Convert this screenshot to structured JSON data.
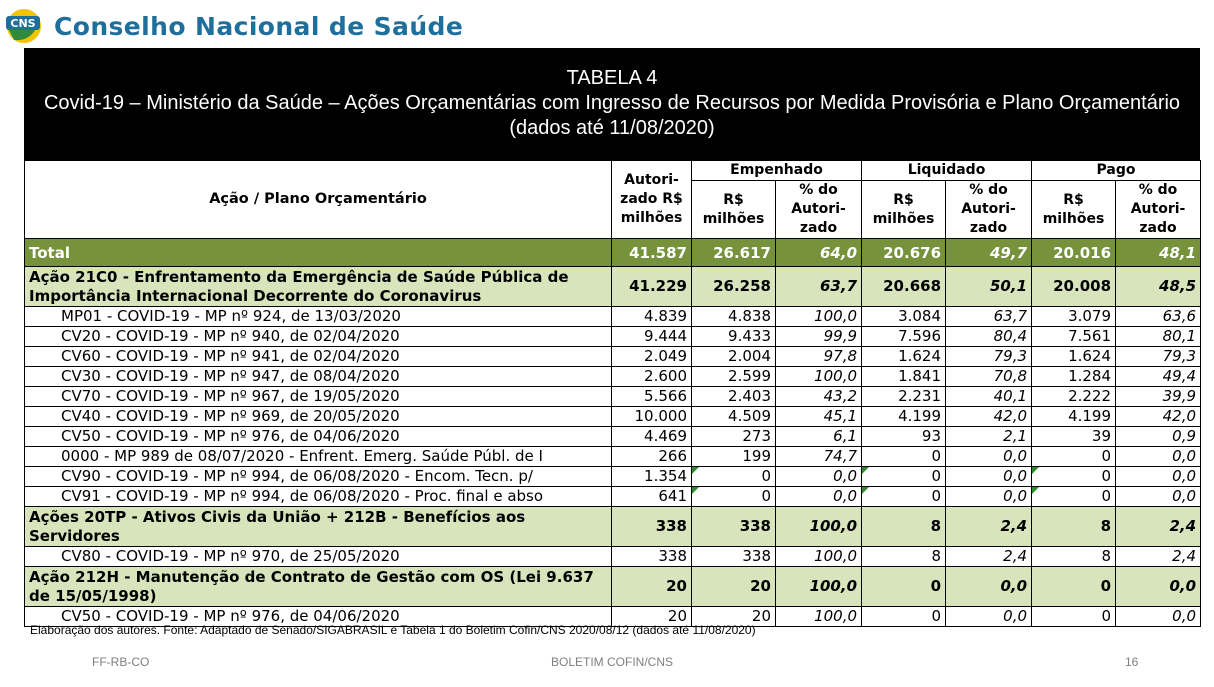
{
  "header": {
    "org_name": "Conselho Nacional de Saúde",
    "logo_text": "CNS"
  },
  "title": {
    "line1": "TABELA 4",
    "line2": "Covid-19 – Ministério da Saúde – Ações Orçamentárias com Ingresso de Recursos por Medida Provisória e Plano Orçamentário",
    "line3": "(dados até 11/08/2020)"
  },
  "table": {
    "headers": {
      "acao": "Ação / Plano Orçamentário",
      "autorizado": [
        "Autori-",
        "zado R$",
        "milhões"
      ],
      "empenhado": "Empenhado",
      "liquidado": "Liquidado",
      "pago": "Pago",
      "rs": [
        "R$",
        "milhões"
      ],
      "pct": [
        "% do",
        "Autori-",
        "zado"
      ]
    },
    "rows": [
      {
        "type": "total",
        "label": "Total",
        "aut": "41.587",
        "emp": "26.617",
        "emp_pct": "64,0",
        "liq": "20.676",
        "liq_pct": "49,7",
        "pago": "20.016",
        "pago_pct": "48,1"
      },
      {
        "type": "action",
        "label": "Ação 21C0 - Enfrentamento da Emergência de Saúde Pública de Importância Internacional Decorrente do Coronavirus",
        "aut": "41.229",
        "emp": "26.258",
        "emp_pct": "63,7",
        "liq": "20.668",
        "liq_pct": "50,1",
        "pago": "20.008",
        "pago_pct": "48,5"
      },
      {
        "type": "sub",
        "label": "MP01 - COVID-19 - MP nº 924, de 13/03/2020",
        "aut": "4.839",
        "emp": "4.838",
        "emp_pct": "100,0",
        "liq": "3.084",
        "liq_pct": "63,7",
        "pago": "3.079",
        "pago_pct": "63,6"
      },
      {
        "type": "sub",
        "label": "CV20 - COVID-19 - MP nº 940, de 02/04/2020",
        "aut": "9.444",
        "emp": "9.433",
        "emp_pct": "99,9",
        "liq": "7.596",
        "liq_pct": "80,4",
        "pago": "7.561",
        "pago_pct": "80,1"
      },
      {
        "type": "sub",
        "label": "CV60 - COVID-19 - MP nº 941, de 02/04/2020",
        "aut": "2.049",
        "emp": "2.004",
        "emp_pct": "97,8",
        "liq": "1.624",
        "liq_pct": "79,3",
        "pago": "1.624",
        "pago_pct": "79,3"
      },
      {
        "type": "sub",
        "label": "CV30 - COVID-19 - MP nº 947, de 08/04/2020",
        "aut": "2.600",
        "emp": "2.599",
        "emp_pct": "100,0",
        "liq": "1.841",
        "liq_pct": "70,8",
        "pago": "1.284",
        "pago_pct": "49,4"
      },
      {
        "type": "sub",
        "label": "CV70 - COVID-19 - MP nº 967, de 19/05/2020",
        "aut": "5.566",
        "emp": "2.403",
        "emp_pct": "43,2",
        "liq": "2.231",
        "liq_pct": "40,1",
        "pago": "2.222",
        "pago_pct": "39,9"
      },
      {
        "type": "sub",
        "label": "CV40 - COVID-19 - MP nº 969, de 20/05/2020",
        "aut": "10.000",
        "emp": "4.509",
        "emp_pct": "45,1",
        "liq": "4.199",
        "liq_pct": "42,0",
        "pago": "4.199",
        "pago_pct": "42,0"
      },
      {
        "type": "sub",
        "label": "CV50 - COVID-19 - MP nº 976, de 04/06/2020",
        "aut": "4.469",
        "emp": "273",
        "emp_pct": "6,1",
        "liq": "93",
        "liq_pct": "2,1",
        "pago": "39",
        "pago_pct": "0,9"
      },
      {
        "type": "sub",
        "label": "0000 - MP 989 de 08/07/2020 - Enfrent. Emerg. Saúde Públ. de I",
        "aut": "266",
        "emp": "199",
        "emp_pct": "74,7",
        "liq": "0",
        "liq_pct": "0,0",
        "pago": "0",
        "pago_pct": "0,0"
      },
      {
        "type": "sub",
        "marks": true,
        "label": "CV90 - COVID-19 - MP nº 994, de 06/08/2020 - Encom. Tecn. p/",
        "aut": "1.354",
        "emp": "0",
        "emp_pct": "0,0",
        "liq": "0",
        "liq_pct": "0,0",
        "pago": "0",
        "pago_pct": "0,0"
      },
      {
        "type": "sub",
        "marks": true,
        "label": "CV91 - COVID-19 - MP nº 994, de 06/08/2020 - Proc. final e abso",
        "aut": "641",
        "emp": "0",
        "emp_pct": "0,0",
        "liq": "0",
        "liq_pct": "0,0",
        "pago": "0",
        "pago_pct": "0,0"
      },
      {
        "type": "action",
        "label": "Ações 20TP - Ativos Civis da União + 212B - Benefícios aos Servidores",
        "aut": "338",
        "emp": "338",
        "emp_pct": "100,0",
        "liq": "8",
        "liq_pct": "2,4",
        "pago": "8",
        "pago_pct": "2,4"
      },
      {
        "type": "sub",
        "label": "CV80 - COVID-19 - MP nº 970, de 25/05/2020",
        "aut": "338",
        "emp": "338",
        "emp_pct": "100,0",
        "liq": "8",
        "liq_pct": "2,4",
        "pago": "8",
        "pago_pct": "2,4"
      },
      {
        "type": "action",
        "label": "Ação 212H - Manutenção de Contrato de Gestão com OS (Lei 9.637 de 15/05/1998)",
        "aut": "20",
        "emp": "20",
        "emp_pct": "100,0",
        "liq": "0",
        "liq_pct": "0,0",
        "pago": "0",
        "pago_pct": "0,0"
      },
      {
        "type": "sub",
        "label": "CV50 - COVID-19 - MP nº 976, de 04/06/2020",
        "aut": "20",
        "emp": "20",
        "emp_pct": "100,0",
        "liq": "0",
        "liq_pct": "0,0",
        "pago": "0",
        "pago_pct": "0,0"
      }
    ]
  },
  "source": "Elaboração dos autores. Fonte: Adaptado de Senado/SIGABRASIL e Tabela 1 do Boletim Cofin/CNS 2020/08/12  (dados até 11/08/2020)",
  "footer": {
    "left": "FF-RB-CO",
    "center": "BOLETIM COFIN/CNS",
    "page": "16"
  },
  "colors": {
    "title_bg": "#000000",
    "total_row": "#76933c",
    "action_row": "#d8e4bc",
    "org_name": "#1f6f9c",
    "note_mark": "#2e8b2e"
  }
}
